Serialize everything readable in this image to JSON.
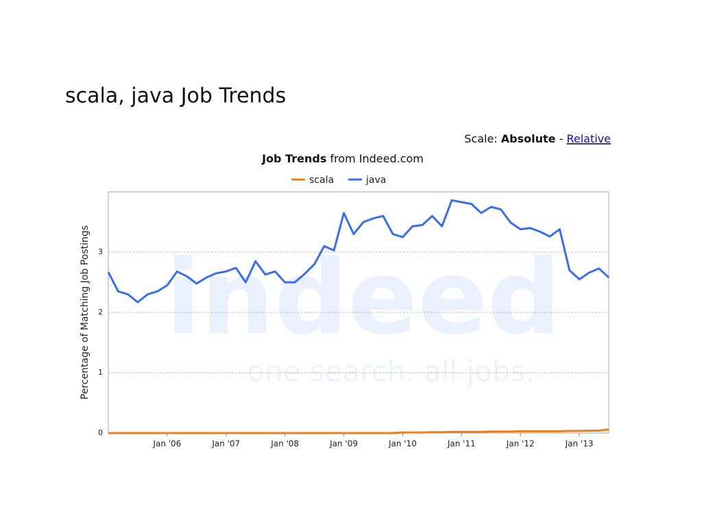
{
  "page_title": "scala, java Job Trends",
  "scale_control": {
    "label": "Scale:",
    "current": "Absolute",
    "separator": "-",
    "other": "Relative"
  },
  "watermark": {
    "logo": "indeed",
    "tagline": "one search. all jobs."
  },
  "chart_data": {
    "type": "line",
    "title": "Job Trends",
    "subtitle": "from Indeed.com",
    "y_label": "Percentage of Matching Job Postings",
    "x": [
      "2005-01",
      "2005-03",
      "2005-05",
      "2005-07",
      "2005-09",
      "2005-11",
      "2006-01",
      "2006-03",
      "2006-05",
      "2006-07",
      "2006-09",
      "2006-11",
      "2007-01",
      "2007-03",
      "2007-05",
      "2007-07",
      "2007-09",
      "2007-11",
      "2008-01",
      "2008-03",
      "2008-05",
      "2008-07",
      "2008-09",
      "2008-11",
      "2009-01",
      "2009-03",
      "2009-05",
      "2009-07",
      "2009-09",
      "2009-11",
      "2010-01",
      "2010-03",
      "2010-05",
      "2010-07",
      "2010-09",
      "2010-11",
      "2011-01",
      "2011-03",
      "2011-05",
      "2011-07",
      "2011-09",
      "2011-11",
      "2012-01",
      "2012-03",
      "2012-05",
      "2012-07",
      "2012-09",
      "2012-11",
      "2013-01",
      "2013-03",
      "2013-05",
      "2013-07"
    ],
    "series": [
      {
        "name": "scala",
        "color": "#f07d1a",
        "values": [
          0,
          0,
          0,
          0,
          0,
          0,
          0,
          0,
          0,
          0,
          0,
          0,
          0,
          0,
          0,
          0,
          0,
          0,
          0,
          0,
          0,
          0,
          0,
          0,
          0,
          0,
          0,
          0,
          0,
          0,
          0.01,
          0.01,
          0.01,
          0.015,
          0.015,
          0.02,
          0.02,
          0.02,
          0.02,
          0.025,
          0.025,
          0.025,
          0.03,
          0.03,
          0.03,
          0.03,
          0.03,
          0.035,
          0.035,
          0.04,
          0.04,
          0.06
        ]
      },
      {
        "name": "java",
        "color": "#3a6ee8",
        "values": [
          2.67,
          2.35,
          2.3,
          2.17,
          2.3,
          2.35,
          2.45,
          2.68,
          2.6,
          2.48,
          2.58,
          2.65,
          2.68,
          2.74,
          2.5,
          2.85,
          2.63,
          2.68,
          2.5,
          2.5,
          2.64,
          2.8,
          3.1,
          3.03,
          3.65,
          3.3,
          3.5,
          3.56,
          3.6,
          3.3,
          3.25,
          3.43,
          3.45,
          3.6,
          3.43,
          3.86,
          3.83,
          3.8,
          3.65,
          3.75,
          3.71,
          3.49,
          3.38,
          3.4,
          3.34,
          3.26,
          3.38,
          2.7,
          2.55,
          2.66,
          2.73,
          2.58
        ]
      }
    ],
    "xlim": [
      "2005-01",
      "2013-07"
    ],
    "xticks": [
      {
        "value": "2006-01",
        "label": "Jan '06"
      },
      {
        "value": "2007-01",
        "label": "Jan '07"
      },
      {
        "value": "2008-01",
        "label": "Jan '08"
      },
      {
        "value": "2009-01",
        "label": "Jan '09"
      },
      {
        "value": "2010-01",
        "label": "Jan '10"
      },
      {
        "value": "2011-01",
        "label": "Jan '11"
      },
      {
        "value": "2012-01",
        "label": "Jan '12"
      },
      {
        "value": "2013-01",
        "label": "Jan '13"
      }
    ],
    "ylim": [
      0,
      4
    ],
    "yticks": [
      0,
      1,
      2,
      3
    ],
    "grid": true
  }
}
